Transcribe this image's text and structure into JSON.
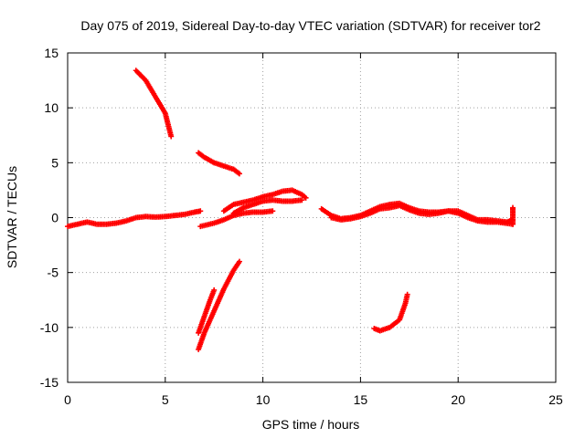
{
  "chart_data": {
    "type": "scatter",
    "title": "Day 075 of 2019, Sidereal Day-to-day VTEC variation (SDTVAR) for receiver tor2",
    "xlabel": "GPS time / hours",
    "ylabel": "SDTVAR / TECUs",
    "xlim": [
      0,
      25
    ],
    "ylim": [
      -15,
      15
    ],
    "xticks": [
      0,
      5,
      10,
      15,
      20,
      25
    ],
    "yticks": [
      -15,
      -10,
      -5,
      0,
      5,
      10,
      15
    ],
    "xtick_labels": [
      "0",
      "5",
      "10",
      "15",
      "20",
      "25"
    ],
    "ytick_labels": [
      "-15",
      "-10",
      "-5",
      "0",
      "5",
      "10",
      "15"
    ],
    "grid": true,
    "marker_color": "#ff0000",
    "series": [
      {
        "name": "track-baseline-1",
        "points": [
          [
            0,
            -0.8
          ],
          [
            0.5,
            -0.6
          ],
          [
            1,
            -0.4
          ],
          [
            1.5,
            -0.6
          ],
          [
            2,
            -0.6
          ],
          [
            2.5,
            -0.5
          ],
          [
            3,
            -0.3
          ],
          [
            3.5,
            0
          ],
          [
            4,
            0.1
          ],
          [
            4.5,
            0.05
          ],
          [
            5,
            0.1
          ],
          [
            5.5,
            0.2
          ],
          [
            6,
            0.3
          ],
          [
            6.5,
            0.5
          ],
          [
            6.8,
            0.6
          ]
        ]
      },
      {
        "name": "track-descending-high",
        "points": [
          [
            3.5,
            13.4
          ],
          [
            4,
            12.5
          ],
          [
            4.5,
            11
          ],
          [
            5,
            9.5
          ],
          [
            5.3,
            7.4
          ]
        ]
      },
      {
        "name": "track-descending-mid",
        "points": [
          [
            6.7,
            5.9
          ],
          [
            7,
            5.5
          ],
          [
            7.5,
            5
          ],
          [
            8,
            4.7
          ],
          [
            8.5,
            4.4
          ],
          [
            8.8,
            4.0
          ]
        ]
      },
      {
        "name": "track-ascending-low-a",
        "points": [
          [
            6.7,
            -12
          ],
          [
            7,
            -10.5
          ],
          [
            7.5,
            -8.5
          ],
          [
            8,
            -6.5
          ],
          [
            8.5,
            -4.8
          ],
          [
            8.8,
            -4.0
          ]
        ]
      },
      {
        "name": "track-ascending-low-b",
        "points": [
          [
            6.7,
            -10.5
          ],
          [
            7,
            -9
          ],
          [
            7.3,
            -7.5
          ],
          [
            7.5,
            -6.6
          ]
        ]
      },
      {
        "name": "track-rising-middle",
        "points": [
          [
            6.8,
            -0.8
          ],
          [
            7.5,
            -0.5
          ],
          [
            8,
            -0.2
          ],
          [
            8.5,
            0.2
          ],
          [
            9,
            0.4
          ],
          [
            9.5,
            0.5
          ],
          [
            10,
            0.5
          ],
          [
            10.5,
            0.6
          ]
        ]
      },
      {
        "name": "track-hump-upper",
        "points": [
          [
            8,
            0.6
          ],
          [
            8.5,
            1.2
          ],
          [
            9,
            1.4
          ],
          [
            9.5,
            1.6
          ],
          [
            10,
            1.9
          ],
          [
            10.5,
            2.1
          ],
          [
            11,
            2.4
          ],
          [
            11.5,
            2.5
          ],
          [
            12,
            2.1
          ],
          [
            12.2,
            1.8
          ]
        ]
      },
      {
        "name": "track-hump-lower",
        "points": [
          [
            8.5,
            0.4
          ],
          [
            9,
            0.9
          ],
          [
            9.5,
            1.2
          ],
          [
            10,
            1.5
          ],
          [
            10.5,
            1.6
          ],
          [
            11,
            1.5
          ],
          [
            11.5,
            1.5
          ],
          [
            12,
            1.6
          ]
        ]
      },
      {
        "name": "track-afternoon",
        "points": [
          [
            13,
            0.8
          ],
          [
            13.5,
            0.2
          ],
          [
            14,
            -0.1
          ],
          [
            14.5,
            0
          ],
          [
            15,
            0.2
          ],
          [
            15.5,
            0.6
          ],
          [
            16,
            1.0
          ],
          [
            16.5,
            1.2
          ],
          [
            17,
            1.3
          ],
          [
            17.5,
            0.9
          ],
          [
            18,
            0.6
          ],
          [
            18.5,
            0.5
          ],
          [
            19,
            0.5
          ],
          [
            19.5,
            0.6
          ],
          [
            20,
            0.6
          ],
          [
            20.5,
            0.2
          ],
          [
            21,
            -0.2
          ],
          [
            21.5,
            -0.2
          ],
          [
            22,
            -0.3
          ],
          [
            22.5,
            -0.4
          ],
          [
            22.8,
            -0.2
          ]
        ]
      },
      {
        "name": "track-afternoon-low",
        "points": [
          [
            13.5,
            0
          ],
          [
            14,
            -0.2
          ],
          [
            14.5,
            -0.1
          ],
          [
            15,
            0.1
          ],
          [
            15.5,
            0.4
          ],
          [
            16,
            0.8
          ],
          [
            16.5,
            0.9
          ],
          [
            17,
            1.1
          ],
          [
            17.5,
            0.7
          ],
          [
            18,
            0.4
          ],
          [
            18.5,
            0.3
          ],
          [
            19,
            0.4
          ],
          [
            19.5,
            0.6
          ],
          [
            20,
            0.4
          ],
          [
            20.5,
            0
          ],
          [
            21,
            -0.3
          ],
          [
            21.5,
            -0.4
          ],
          [
            22,
            -0.4
          ],
          [
            22.8,
            -0.6
          ]
        ]
      },
      {
        "name": "track-evening-low",
        "points": [
          [
            15.7,
            -10.1
          ],
          [
            16,
            -10.3
          ],
          [
            16.5,
            -10.0
          ],
          [
            17,
            -9.3
          ],
          [
            17.3,
            -7.8
          ],
          [
            17.4,
            -7.0
          ]
        ]
      },
      {
        "name": "track-end-spike",
        "points": [
          [
            22.8,
            -0.6
          ],
          [
            22.8,
            0
          ],
          [
            22.8,
            0.5
          ],
          [
            22.8,
            0.9
          ]
        ]
      }
    ]
  }
}
